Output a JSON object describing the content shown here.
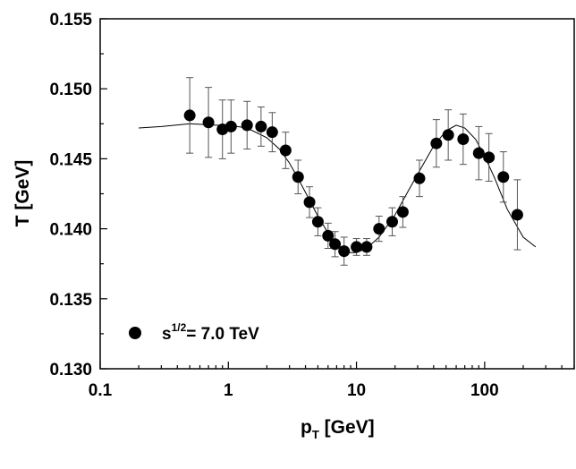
{
  "chart_data": {
    "type": "scatter",
    "title": "",
    "xlabel": "p",
    "xlabel_sub": "T",
    "xlabel_unit": " [GeV]",
    "ylabel": "T [GeV]",
    "xscale": "log",
    "xlim": [
      0.1,
      500
    ],
    "ylim": [
      0.13,
      0.155
    ],
    "x_ticks": [
      0.1,
      1,
      10,
      100
    ],
    "x_tick_labels": [
      "0.1",
      "1",
      "10",
      "100"
    ],
    "y_ticks": [
      0.13,
      0.135,
      0.14,
      0.145,
      0.15,
      0.155
    ],
    "y_tick_labels": [
      "0.130",
      "0.135",
      "0.140",
      "0.145",
      "0.150",
      "0.155"
    ],
    "grid": false,
    "legend": {
      "position": "bottom-left",
      "label_base": "s",
      "label_sup": "1/2",
      "label_rest": "= 7.0 TeV"
    },
    "series": [
      {
        "name": "s^1/2 = 7.0 TeV",
        "marker": "circle",
        "color": "#000000",
        "points": [
          {
            "x": 0.5,
            "y": 0.1481,
            "err": 0.0027
          },
          {
            "x": 0.7,
            "y": 0.1476,
            "err": 0.0025
          },
          {
            "x": 0.9,
            "y": 0.1471,
            "err": 0.0021
          },
          {
            "x": 1.05,
            "y": 0.1473,
            "err": 0.0019
          },
          {
            "x": 1.4,
            "y": 0.1474,
            "err": 0.0017
          },
          {
            "x": 1.8,
            "y": 0.1473,
            "err": 0.0014
          },
          {
            "x": 2.2,
            "y": 0.1469,
            "err": 0.0014
          },
          {
            "x": 2.8,
            "y": 0.1456,
            "err": 0.0013
          },
          {
            "x": 3.5,
            "y": 0.1437,
            "err": 0.0012
          },
          {
            "x": 4.3,
            "y": 0.1419,
            "err": 0.0011
          },
          {
            "x": 5.0,
            "y": 0.1405,
            "err": 0.001
          },
          {
            "x": 6.0,
            "y": 0.1395,
            "err": 0.0009
          },
          {
            "x": 6.8,
            "y": 0.1389,
            "err": 0.0009
          },
          {
            "x": 8.0,
            "y": 0.1384,
            "err": 0.001
          },
          {
            "x": 10.0,
            "y": 0.1387,
            "err": 0.0006
          },
          {
            "x": 12.0,
            "y": 0.1387,
            "err": 0.0006
          },
          {
            "x": 15.0,
            "y": 0.14,
            "err": 0.0009
          },
          {
            "x": 19.0,
            "y": 0.1405,
            "err": 0.001
          },
          {
            "x": 23.0,
            "y": 0.1412,
            "err": 0.0011
          },
          {
            "x": 31.0,
            "y": 0.1436,
            "err": 0.0013
          },
          {
            "x": 42.0,
            "y": 0.1461,
            "err": 0.0017
          },
          {
            "x": 52.0,
            "y": 0.1467,
            "err": 0.0018
          },
          {
            "x": 68.0,
            "y": 0.1464,
            "err": 0.0018
          },
          {
            "x": 90.0,
            "y": 0.1454,
            "err": 0.0019
          },
          {
            "x": 108.0,
            "y": 0.1451,
            "err": 0.0017
          },
          {
            "x": 140.0,
            "y": 0.1437,
            "err": 0.0018
          },
          {
            "x": 180.0,
            "y": 0.141,
            "err": 0.0025
          }
        ]
      },
      {
        "name": "fit",
        "type": "line",
        "color": "#000000",
        "points": [
          {
            "x": 0.2,
            "y": 0.1472
          },
          {
            "x": 0.3,
            "y": 0.1473
          },
          {
            "x": 0.5,
            "y": 0.1475
          },
          {
            "x": 0.8,
            "y": 0.1474
          },
          {
            "x": 1.0,
            "y": 0.1474
          },
          {
            "x": 1.4,
            "y": 0.1472
          },
          {
            "x": 2.0,
            "y": 0.1465
          },
          {
            "x": 2.5,
            "y": 0.1457
          },
          {
            "x": 3.0,
            "y": 0.1447
          },
          {
            "x": 3.5,
            "y": 0.1436
          },
          {
            "x": 4.0,
            "y": 0.1426
          },
          {
            "x": 5.0,
            "y": 0.1409
          },
          {
            "x": 6.0,
            "y": 0.1397
          },
          {
            "x": 7.0,
            "y": 0.1389
          },
          {
            "x": 8.0,
            "y": 0.1385
          },
          {
            "x": 9.0,
            "y": 0.1383
          },
          {
            "x": 10.0,
            "y": 0.1383
          },
          {
            "x": 12.0,
            "y": 0.1386
          },
          {
            "x": 15.0,
            "y": 0.1394
          },
          {
            "x": 20.0,
            "y": 0.141
          },
          {
            "x": 25.0,
            "y": 0.1426
          },
          {
            "x": 30.0,
            "y": 0.1439
          },
          {
            "x": 40.0,
            "y": 0.1459
          },
          {
            "x": 50.0,
            "y": 0.147
          },
          {
            "x": 60.0,
            "y": 0.1474
          },
          {
            "x": 70.0,
            "y": 0.1472
          },
          {
            "x": 85.0,
            "y": 0.1464
          },
          {
            "x": 100.0,
            "y": 0.1452
          },
          {
            "x": 120.0,
            "y": 0.1436
          },
          {
            "x": 150.0,
            "y": 0.1414
          },
          {
            "x": 200.0,
            "y": 0.1394
          },
          {
            "x": 250.0,
            "y": 0.1387
          }
        ]
      }
    ]
  }
}
